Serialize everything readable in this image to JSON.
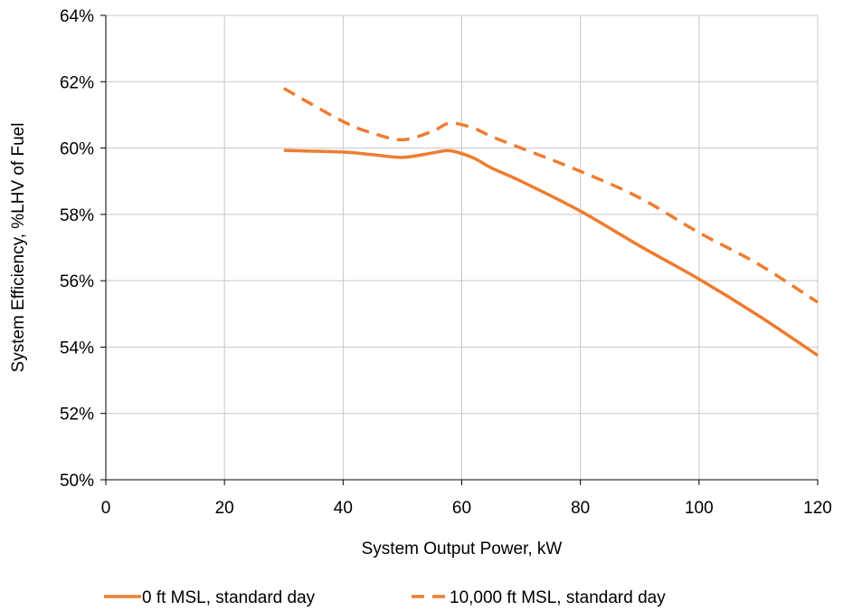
{
  "chart_data": {
    "type": "line",
    "xlabel": "System Output Power, kW",
    "ylabel": "System Efficiency, %LHV of Fuel",
    "xlim": [
      0,
      120
    ],
    "ylim": [
      50,
      64
    ],
    "x_ticks": [
      0,
      20,
      40,
      60,
      80,
      100,
      120
    ],
    "x_tick_labels": [
      "0",
      "20",
      "40",
      "60",
      "80",
      "100",
      "120"
    ],
    "y_ticks": [
      50,
      52,
      54,
      56,
      58,
      60,
      62,
      64
    ],
    "y_tick_labels": [
      "50%",
      "52%",
      "54%",
      "56%",
      "58%",
      "60%",
      "62%",
      "64%"
    ],
    "grid": true,
    "legend_position": "bottom",
    "series": [
      {
        "name": "0 ft MSL, standard day",
        "style": "solid",
        "color": "#ED7D31",
        "x": [
          30,
          40,
          45,
          50,
          55,
          58,
          62,
          65,
          70,
          80,
          90,
          100,
          110,
          120
        ],
        "y": [
          59.93,
          59.88,
          59.8,
          59.72,
          59.85,
          59.92,
          59.7,
          59.4,
          59.0,
          58.1,
          57.05,
          56.05,
          54.95,
          53.75
        ]
      },
      {
        "name": "10,000 ft MSL, standard day",
        "style": "dashed",
        "color": "#ED7D31",
        "x": [
          30,
          40,
          45,
          50,
          55,
          58,
          62,
          65,
          70,
          80,
          90,
          100,
          110,
          120
        ],
        "y": [
          61.8,
          60.8,
          60.45,
          60.25,
          60.5,
          60.75,
          60.6,
          60.35,
          60.0,
          59.3,
          58.5,
          57.45,
          56.5,
          55.35
        ]
      }
    ]
  }
}
